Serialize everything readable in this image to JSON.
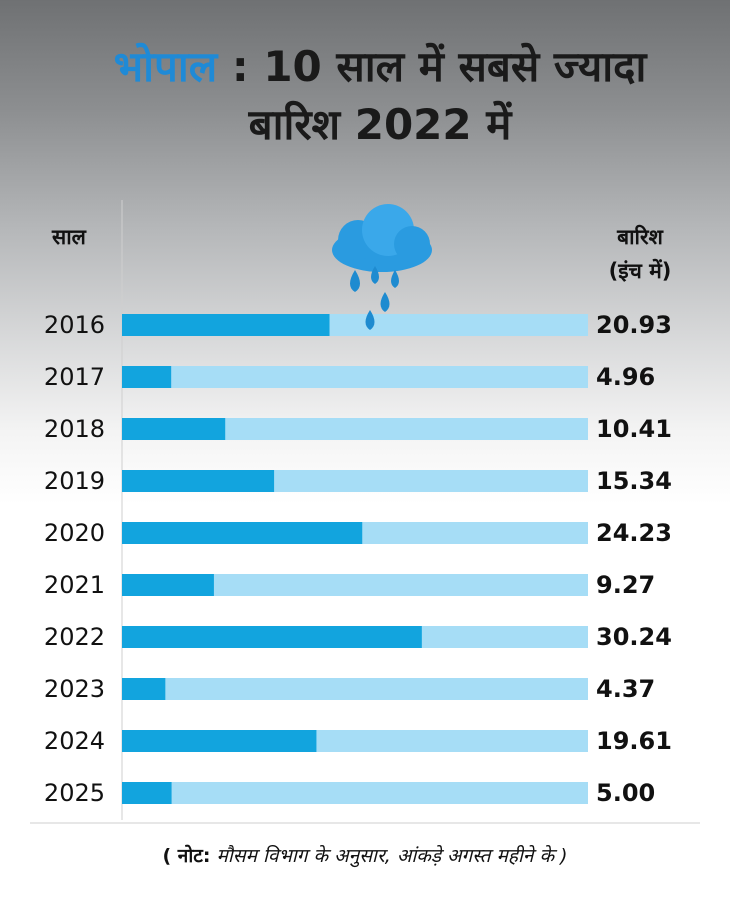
{
  "chart_data": {
    "type": "bar",
    "orientation": "horizontal",
    "title_highlight": "भोपाल",
    "title": ": 10 साल में सबसे ज्यादा बारिश 2022 में",
    "y_label": "साल",
    "value_header": "बारिश",
    "value_unit": "(इंच में)",
    "categories": [
      "2016",
      "2017",
      "2018",
      "2019",
      "2020",
      "2021",
      "2022",
      "2023",
      "2024",
      "2025"
    ],
    "values": [
      20.93,
      4.96,
      10.41,
      15.34,
      24.23,
      9.27,
      30.24,
      4.37,
      19.61,
      5.0
    ],
    "value_labels": [
      "20.93",
      "4.96",
      "10.41",
      "15.34",
      "24.23",
      "9.27",
      "30.24",
      "4.37",
      "19.61",
      "5.00"
    ],
    "color": "#12a4de",
    "track_color": "#a6ddf6",
    "xlim": [
      0,
      47
    ],
    "note_label": "( नोट:",
    "note": "मौसम विभाग के अनुसार, आंकड़े अगस्त महीने के )"
  }
}
